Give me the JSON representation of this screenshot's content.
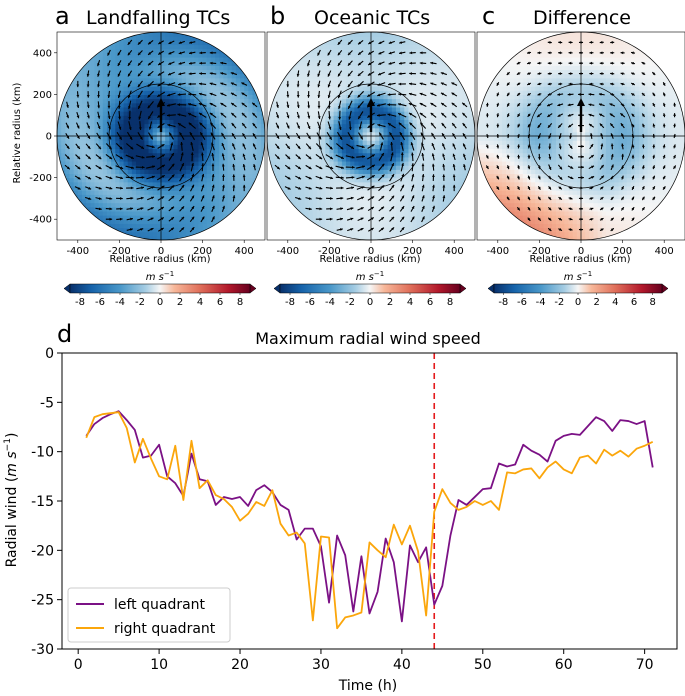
{
  "panels": [
    {
      "letter": "a",
      "title": "Landfalling TCs",
      "variant": "landfall"
    },
    {
      "letter": "b",
      "title": "Oceanic TCs",
      "variant": "ocean"
    },
    {
      "letter": "c",
      "title": "Difference",
      "variant": "diff"
    }
  ],
  "polar_axes": {
    "xlabel": "Relative radius (km)",
    "ylabel": "Relative radius (km)",
    "ticks": [
      -400,
      -200,
      0,
      200,
      400
    ],
    "y_ticks": [
      400,
      200,
      0,
      -200,
      -400
    ],
    "range": [
      -500,
      500
    ],
    "rings_km": [
      250,
      500
    ]
  },
  "colorbar": {
    "unit": "m s",
    "unit_exp": "−1",
    "ticks": [
      "-8",
      "-6",
      "-4",
      "-2",
      "0",
      "2",
      "4",
      "6",
      "8"
    ],
    "range": [
      -9,
      9
    ],
    "colors": {
      "neg": "#08306b",
      "mid": "#f7f7f7",
      "pos": "#67001f"
    }
  },
  "line_panel": {
    "letter": "d"
  },
  "chart_data": {
    "type": "line",
    "title": "Maximum radial wind speed",
    "xlabel": "Time (h)",
    "ylabel_main": "Radial wind (",
    "ylabel_unit": "m s",
    "ylabel_exp": "−1",
    "ylabel_close": ")",
    "xlim": [
      -2,
      74
    ],
    "ylim": [
      -30,
      0
    ],
    "x_ticks": [
      0,
      10,
      20,
      30,
      40,
      50,
      60,
      70
    ],
    "y_ticks": [
      0,
      -5,
      -10,
      -15,
      -20,
      -25,
      -30
    ],
    "vline": {
      "x": 44,
      "color": "#e41a1c",
      "style": "dashed"
    },
    "legend_position": "lower-left",
    "x": [
      1,
      2,
      3,
      4,
      5,
      6,
      7,
      8,
      9,
      10,
      11,
      12,
      13,
      14,
      15,
      16,
      17,
      18,
      19,
      20,
      21,
      22,
      23,
      24,
      25,
      26,
      27,
      28,
      29,
      30,
      31,
      32,
      33,
      34,
      35,
      36,
      37,
      38,
      39,
      40,
      41,
      42,
      43,
      44,
      45,
      46,
      47,
      48,
      49,
      50,
      51,
      52,
      53,
      54,
      55,
      56,
      57,
      58,
      59,
      60,
      61,
      62,
      63,
      64,
      65,
      66,
      67,
      68,
      69,
      70,
      71
    ],
    "series": [
      {
        "name": "left quadrant",
        "color": "#7b1185",
        "values": [
          -8.4,
          -7.2,
          -6.6,
          -6.2,
          -5.9,
          -6.8,
          -7.8,
          -10.6,
          -10.4,
          -9.3,
          -12.5,
          -13.2,
          -14.5,
          -10.2,
          -12.8,
          -13.0,
          -15.4,
          -14.6,
          -14.8,
          -14.6,
          -15.5,
          -13.9,
          -13.4,
          -14.1,
          -15.4,
          -15.9,
          -18.9,
          -17.8,
          -17.8,
          -19.6,
          -25.3,
          -18.5,
          -20.5,
          -26.2,
          -20.6,
          -26.4,
          -24.2,
          -18.8,
          -21.2,
          -27.2,
          -19.5,
          -21.2,
          -19.7,
          -25.5,
          -23.6,
          -18.5,
          -14.9,
          -15.4,
          -14.6,
          -13.8,
          -13.7,
          -11.2,
          -11.5,
          -11.3,
          -9.3,
          -9.9,
          -10.3,
          -11.0,
          -8.9,
          -8.4,
          -8.2,
          -8.3,
          -7.4,
          -6.5,
          -6.9,
          -7.9,
          -6.8,
          -6.9,
          -7.2,
          -6.9,
          -11.6
        ]
      },
      {
        "name": "right quadrant",
        "color": "#fba60b",
        "values": [
          -8.6,
          -6.5,
          -6.2,
          -6.1,
          -6.0,
          -7.6,
          -11.1,
          -8.7,
          -10.7,
          -12.5,
          -12.8,
          -9.4,
          -14.9,
          -8.9,
          -13.7,
          -12.9,
          -14.4,
          -14.8,
          -15.6,
          -17.0,
          -16.3,
          -15.1,
          -15.5,
          -13.9,
          -17.3,
          -18.5,
          -18.2,
          -19.3,
          -27.1,
          -18.6,
          -18.7,
          -27.9,
          -26.8,
          -26.6,
          -26.3,
          -19.2,
          -20.0,
          -20.7,
          -17.4,
          -19.4,
          -17.5,
          -20.1,
          -26.6,
          -16.1,
          -13.8,
          -15.2,
          -15.9,
          -15.6,
          -15.0,
          -15.4,
          -15.0,
          -15.9,
          -12.1,
          -12.2,
          -11.8,
          -11.7,
          -12.7,
          -11.6,
          -11.0,
          -11.8,
          -12.2,
          -10.6,
          -10.4,
          -11.2,
          -9.8,
          -10.4,
          -9.9,
          -10.5,
          -9.7,
          -9.4,
          -9.0
        ]
      }
    ]
  }
}
